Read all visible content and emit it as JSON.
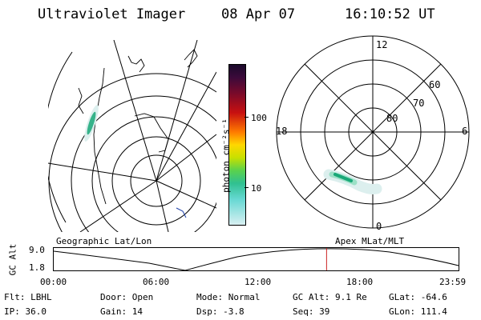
{
  "header": {
    "instrument": "Ultraviolet Imager",
    "date": "08 Apr 07",
    "time": "16:10:52 UT"
  },
  "colorbar": {
    "unit_label": "photon cm⁻²s⁻¹",
    "ticks": [
      "100",
      "10"
    ]
  },
  "polar_plot": {
    "mlt_labels": {
      "top": "12",
      "bottom": "0",
      "left": "18",
      "right": "6"
    },
    "lat_labels": [
      "60",
      "70",
      "80"
    ]
  },
  "timeline": {
    "left_label": "Geographic Lat/Lon",
    "right_label": "Apex MLat/MLT",
    "axis_title": "GC Alt",
    "y_ticks": [
      "9.0",
      "1.8"
    ],
    "x_ticks": [
      "00:00",
      "06:00",
      "12:00",
      "18:00",
      "23:59"
    ],
    "current_time_fraction": 0.674
  },
  "status": {
    "flt": "Flt: LBHL",
    "ip": "IP: 36.0",
    "door": "Door: Open",
    "gain": "Gain: 14",
    "mode": "Mode: Normal",
    "dsp": "Dsp:   -3.8",
    "gc_alt": "GC Alt: 9.1 Re",
    "seq": "Seq: 39",
    "glat": "GLat: -64.6",
    "glon": "GLon: 111.4"
  },
  "colors": {
    "marker": "#cc2222",
    "aurora_core": "#19a878",
    "aurora_mid": "#9be0c6",
    "aurora_faint": "#dcefee"
  }
}
